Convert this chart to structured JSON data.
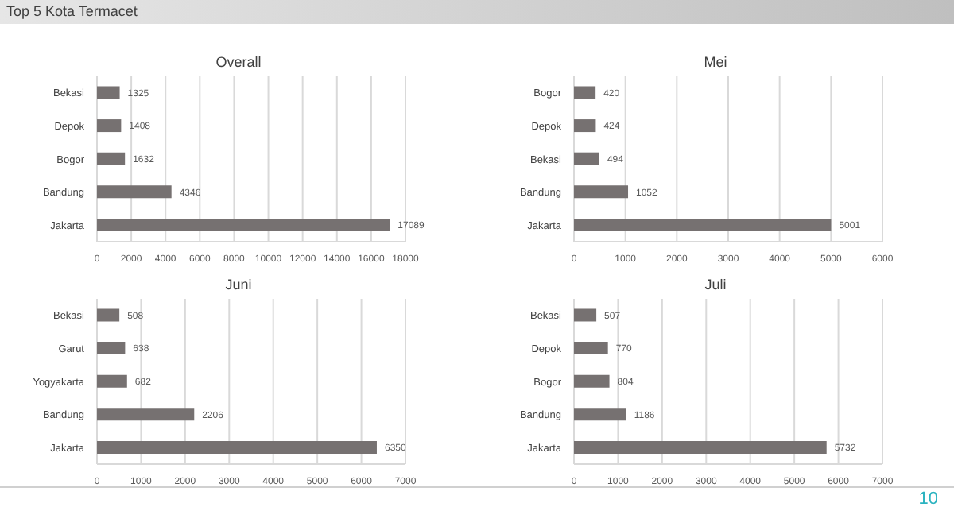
{
  "chart_data": [
    {
      "type": "other",
      "title": "Top 5 Kota Termacet",
      "annotations": [
        "10"
      ]
    },
    {
      "type": "bar",
      "orientation": "horizontal",
      "title": "Overall",
      "categories": [
        "Bekasi",
        "Depok",
        "Bogor",
        "Bandung",
        "Jakarta"
      ],
      "values": [
        1325,
        1408,
        1632,
        4346,
        17089
      ],
      "color": "#767171",
      "xlim": [
        0,
        18000
      ],
      "xticks": [
        0,
        2000,
        4000,
        6000,
        8000,
        10000,
        12000,
        14000,
        16000,
        18000
      ],
      "grid": "x",
      "data_labels": true
    },
    {
      "type": "bar",
      "orientation": "horizontal",
      "title": "Mei",
      "categories": [
        "Bogor",
        "Depok",
        "Bekasi",
        "Bandung",
        "Jakarta"
      ],
      "values": [
        420,
        424,
        494,
        1052,
        5001
      ],
      "color": "#767171",
      "xlim": [
        0,
        6000
      ],
      "xticks": [
        0,
        1000,
        2000,
        3000,
        4000,
        5000,
        6000
      ],
      "grid": "x",
      "data_labels": true
    },
    {
      "type": "bar",
      "orientation": "horizontal",
      "title": "Juni",
      "categories": [
        "Bekasi",
        "Garut",
        "Yogyakarta",
        "Bandung",
        "Jakarta"
      ],
      "values": [
        508,
        638,
        682,
        2206,
        6350
      ],
      "color": "#767171",
      "xlim": [
        0,
        7000
      ],
      "xticks": [
        0,
        1000,
        2000,
        3000,
        4000,
        5000,
        6000,
        7000
      ],
      "grid": "x",
      "data_labels": true
    },
    {
      "type": "bar",
      "orientation": "horizontal",
      "title": "Juli",
      "categories": [
        "Bekasi",
        "Depok",
        "Bogor",
        "Bandung",
        "Jakarta"
      ],
      "values": [
        507,
        770,
        804,
        1186,
        5732
      ],
      "color": "#767171",
      "xlim": [
        0,
        7000
      ],
      "xticks": [
        0,
        1000,
        2000,
        3000,
        4000,
        5000,
        6000,
        7000
      ],
      "grid": "x",
      "data_labels": true
    }
  ]
}
